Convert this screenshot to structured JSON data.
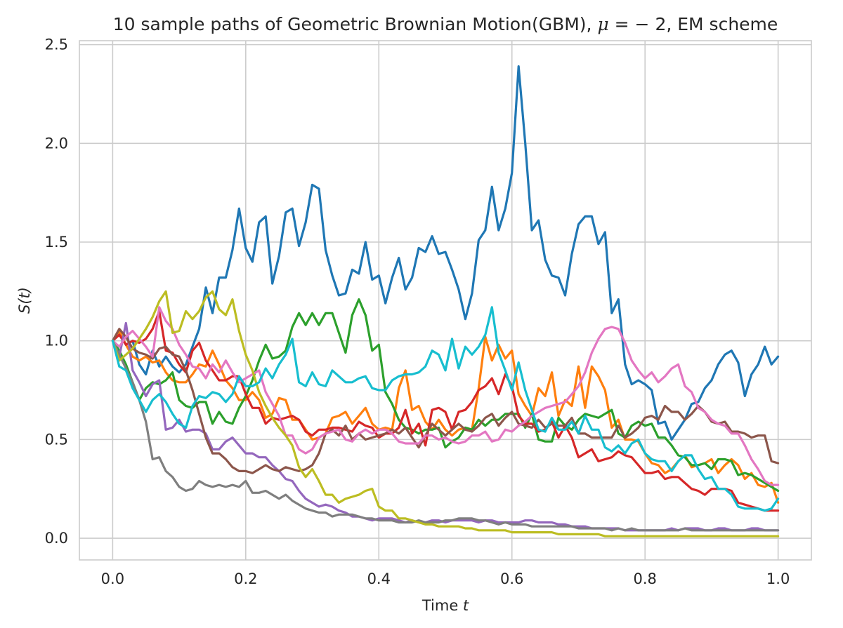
{
  "chart_data": {
    "type": "line",
    "title": "10 sample paths of Geometric Brownian Motion(GBM), μ = − 2, EM scheme",
    "title_parts": {
      "prefix": "10 sample paths of Geometric Brownian Motion(GBM), ",
      "mu_symbol": "μ",
      "mu_value": " = − 2",
      "suffix": ", EM scheme"
    },
    "xlabel": "Time t",
    "xlabel_parts": {
      "text": "Time ",
      "var": "t"
    },
    "ylabel": "S(t)",
    "xlim": [
      -0.05,
      1.05
    ],
    "ylim": [
      -0.11,
      2.52
    ],
    "xticks": [
      0.0,
      0.2,
      0.4,
      0.6,
      0.8,
      1.0
    ],
    "xtick_labels": [
      "0.0",
      "0.2",
      "0.4",
      "0.6",
      "0.8",
      "1.0"
    ],
    "yticks": [
      0.0,
      0.5,
      1.0,
      1.5,
      2.0,
      2.5
    ],
    "ytick_labels": [
      "0.0",
      "0.5",
      "1.0",
      "1.5",
      "2.0",
      "2.5"
    ],
    "grid": true,
    "x": [
      0.0,
      0.01,
      0.02,
      0.03,
      0.04,
      0.05,
      0.06,
      0.07,
      0.08,
      0.09,
      0.1,
      0.11,
      0.12,
      0.13,
      0.14,
      0.15,
      0.16,
      0.17,
      0.18,
      0.19,
      0.2,
      0.21,
      0.22,
      0.23,
      0.24,
      0.25,
      0.26,
      0.27,
      0.28,
      0.29,
      0.3,
      0.31,
      0.32,
      0.33,
      0.34,
      0.35,
      0.36,
      0.37,
      0.38,
      0.39,
      0.4,
      0.41,
      0.42,
      0.43,
      0.44,
      0.45,
      0.46,
      0.47,
      0.48,
      0.49,
      0.5,
      0.51,
      0.52,
      0.53,
      0.54,
      0.55,
      0.56,
      0.57,
      0.58,
      0.59,
      0.6,
      0.61,
      0.62,
      0.63,
      0.64,
      0.65,
      0.66,
      0.67,
      0.68,
      0.69,
      0.7,
      0.71,
      0.72,
      0.73,
      0.74,
      0.75,
      0.76,
      0.77,
      0.78,
      0.79,
      0.8,
      0.81,
      0.82,
      0.83,
      0.84,
      0.85,
      0.86,
      0.87,
      0.88,
      0.89,
      0.9,
      0.91,
      0.92,
      0.93,
      0.94,
      0.95,
      0.96,
      0.97,
      0.98,
      0.99,
      1.0
    ],
    "series": [
      {
        "color": "#1f77b4",
        "values": [
          1.0,
          1.04,
          0.98,
          1.0,
          0.88,
          0.83,
          0.95,
          0.87,
          0.92,
          0.87,
          0.84,
          0.88,
          0.97,
          1.06,
          1.27,
          1.14,
          1.32,
          1.32,
          1.46,
          1.67,
          1.47,
          1.4,
          1.6,
          1.63,
          1.29,
          1.43,
          1.65,
          1.67,
          1.48,
          1.6,
          1.79,
          1.77,
          1.46,
          1.33,
          1.23,
          1.24,
          1.36,
          1.34,
          1.5,
          1.31,
          1.33,
          1.19,
          1.32,
          1.42,
          1.26,
          1.32,
          1.47,
          1.45,
          1.53,
          1.44,
          1.45,
          1.36,
          1.26,
          1.11,
          1.24,
          1.51,
          1.56,
          1.78,
          1.56,
          1.67,
          1.85,
          2.39,
          2.0,
          1.56,
          1.61,
          1.41,
          1.33,
          1.32,
          1.23,
          1.44,
          1.59,
          1.63,
          1.63,
          1.49,
          1.55,
          1.14,
          1.21,
          0.88,
          0.78,
          0.8,
          0.78,
          0.75,
          0.58,
          0.59,
          0.5,
          0.55,
          0.6,
          0.68,
          0.69,
          0.76,
          0.8,
          0.88,
          0.93,
          0.95,
          0.89,
          0.72,
          0.83,
          0.88,
          0.97,
          0.88,
          0.92
        ]
      },
      {
        "color": "#ff7f0e",
        "values": [
          1.0,
          1.05,
          0.98,
          0.92,
          0.9,
          0.92,
          0.89,
          0.9,
          0.84,
          0.8,
          0.79,
          0.79,
          0.83,
          0.88,
          0.87,
          0.95,
          0.88,
          0.8,
          0.76,
          0.7,
          0.7,
          0.74,
          0.7,
          0.61,
          0.63,
          0.71,
          0.7,
          0.6,
          0.6,
          0.55,
          0.5,
          0.51,
          0.53,
          0.61,
          0.62,
          0.64,
          0.58,
          0.62,
          0.66,
          0.58,
          0.55,
          0.56,
          0.55,
          0.76,
          0.85,
          0.65,
          0.67,
          0.59,
          0.55,
          0.6,
          0.55,
          0.52,
          0.55,
          0.56,
          0.55,
          0.76,
          1.02,
          0.9,
          0.98,
          0.91,
          0.95,
          0.73,
          0.67,
          0.62,
          0.76,
          0.72,
          0.84,
          0.62,
          0.7,
          0.67,
          0.87,
          0.66,
          0.87,
          0.82,
          0.75,
          0.56,
          0.6,
          0.5,
          0.5,
          0.49,
          0.43,
          0.38,
          0.37,
          0.33,
          0.35,
          0.39,
          0.42,
          0.36,
          0.37,
          0.38,
          0.4,
          0.33,
          0.37,
          0.4,
          0.37,
          0.3,
          0.33,
          0.27,
          0.26,
          0.28,
          0.18
        ]
      },
      {
        "color": "#2ca02c",
        "values": [
          1.0,
          0.95,
          0.88,
          0.79,
          0.7,
          0.76,
          0.79,
          0.78,
          0.8,
          0.84,
          0.7,
          0.67,
          0.66,
          0.69,
          0.69,
          0.58,
          0.64,
          0.59,
          0.58,
          0.66,
          0.72,
          0.8,
          0.9,
          0.98,
          0.91,
          0.92,
          0.95,
          1.07,
          1.14,
          1.08,
          1.14,
          1.08,
          1.14,
          1.14,
          1.04,
          0.94,
          1.13,
          1.21,
          1.13,
          0.95,
          0.98,
          0.74,
          0.68,
          0.6,
          0.56,
          0.55,
          0.53,
          0.55,
          0.55,
          0.56,
          0.46,
          0.49,
          0.51,
          0.56,
          0.55,
          0.6,
          0.57,
          0.6,
          0.6,
          0.63,
          0.63,
          0.63,
          0.56,
          0.63,
          0.5,
          0.49,
          0.49,
          0.61,
          0.57,
          0.55,
          0.6,
          0.63,
          0.62,
          0.61,
          0.63,
          0.65,
          0.53,
          0.51,
          0.57,
          0.59,
          0.57,
          0.58,
          0.51,
          0.51,
          0.47,
          0.42,
          0.41,
          0.37,
          0.37,
          0.38,
          0.35,
          0.4,
          0.4,
          0.39,
          0.32,
          0.33,
          0.32,
          0.3,
          0.28,
          0.26,
          0.24
        ]
      },
      {
        "color": "#d62728",
        "values": [
          1.0,
          1.03,
          0.98,
          1.0,
          0.99,
          1.01,
          1.06,
          1.15,
          0.95,
          0.94,
          0.88,
          0.84,
          0.95,
          0.99,
          0.9,
          0.85,
          0.8,
          0.8,
          0.82,
          0.82,
          0.73,
          0.66,
          0.66,
          0.58,
          0.61,
          0.6,
          0.61,
          0.62,
          0.6,
          0.54,
          0.52,
          0.55,
          0.55,
          0.56,
          0.56,
          0.55,
          0.54,
          0.59,
          0.57,
          0.56,
          0.51,
          0.53,
          0.53,
          0.56,
          0.65,
          0.53,
          0.58,
          0.47,
          0.65,
          0.66,
          0.64,
          0.55,
          0.64,
          0.65,
          0.69,
          0.75,
          0.77,
          0.81,
          0.73,
          0.83,
          0.77,
          0.62,
          0.58,
          0.58,
          0.54,
          0.55,
          0.59,
          0.51,
          0.57,
          0.51,
          0.41,
          0.43,
          0.45,
          0.39,
          0.4,
          0.41,
          0.44,
          0.42,
          0.41,
          0.37,
          0.33,
          0.33,
          0.34,
          0.3,
          0.31,
          0.31,
          0.28,
          0.25,
          0.24,
          0.22,
          0.25,
          0.25,
          0.25,
          0.24,
          0.18,
          0.17,
          0.16,
          0.15,
          0.14,
          0.14,
          0.14
        ]
      },
      {
        "color": "#9467bd",
        "values": [
          1.0,
          0.92,
          1.09,
          0.85,
          0.79,
          0.72,
          0.78,
          0.8,
          0.55,
          0.56,
          0.6,
          0.54,
          0.55,
          0.55,
          0.53,
          0.45,
          0.45,
          0.49,
          0.51,
          0.47,
          0.43,
          0.43,
          0.41,
          0.41,
          0.37,
          0.34,
          0.3,
          0.29,
          0.24,
          0.2,
          0.18,
          0.16,
          0.17,
          0.16,
          0.14,
          0.13,
          0.11,
          0.11,
          0.1,
          0.09,
          0.1,
          0.1,
          0.1,
          0.09,
          0.08,
          0.09,
          0.08,
          0.08,
          0.09,
          0.09,
          0.08,
          0.09,
          0.09,
          0.09,
          0.09,
          0.08,
          0.09,
          0.09,
          0.08,
          0.08,
          0.08,
          0.08,
          0.09,
          0.09,
          0.08,
          0.08,
          0.08,
          0.07,
          0.07,
          0.06,
          0.06,
          0.06,
          0.05,
          0.05,
          0.05,
          0.05,
          0.05,
          0.04,
          0.04,
          0.04,
          0.04,
          0.04,
          0.04,
          0.04,
          0.05,
          0.04,
          0.05,
          0.05,
          0.05,
          0.04,
          0.04,
          0.05,
          0.05,
          0.04,
          0.04,
          0.04,
          0.05,
          0.05,
          0.04,
          0.04,
          0.04
        ]
      },
      {
        "color": "#8c564b",
        "values": [
          1.0,
          1.06,
          1.02,
          0.96,
          0.94,
          0.93,
          0.91,
          0.96,
          0.97,
          0.93,
          0.92,
          0.85,
          0.75,
          0.63,
          0.51,
          0.43,
          0.43,
          0.4,
          0.36,
          0.34,
          0.34,
          0.33,
          0.35,
          0.37,
          0.35,
          0.34,
          0.36,
          0.35,
          0.34,
          0.35,
          0.37,
          0.43,
          0.53,
          0.55,
          0.52,
          0.57,
          0.5,
          0.53,
          0.5,
          0.51,
          0.52,
          0.53,
          0.55,
          0.53,
          0.56,
          0.51,
          0.46,
          0.52,
          0.58,
          0.55,
          0.52,
          0.55,
          0.58,
          0.55,
          0.54,
          0.57,
          0.61,
          0.63,
          0.57,
          0.61,
          0.64,
          0.58,
          0.57,
          0.56,
          0.6,
          0.56,
          0.58,
          0.57,
          0.57,
          0.61,
          0.53,
          0.53,
          0.51,
          0.51,
          0.51,
          0.51,
          0.57,
          0.51,
          0.53,
          0.56,
          0.61,
          0.62,
          0.6,
          0.67,
          0.64,
          0.64,
          0.6,
          0.63,
          0.67,
          0.64,
          0.59,
          0.58,
          0.59,
          0.54,
          0.54,
          0.53,
          0.51,
          0.52,
          0.52,
          0.39,
          0.38
        ]
      },
      {
        "color": "#e377c2",
        "values": [
          1.0,
          0.97,
          1.02,
          1.05,
          1.01,
          0.97,
          0.92,
          1.17,
          1.1,
          1.06,
          0.98,
          0.93,
          0.87,
          0.86,
          0.81,
          0.88,
          0.84,
          0.9,
          0.84,
          0.79,
          0.81,
          0.83,
          0.85,
          0.74,
          0.68,
          0.62,
          0.52,
          0.52,
          0.45,
          0.43,
          0.45,
          0.51,
          0.53,
          0.54,
          0.55,
          0.5,
          0.49,
          0.53,
          0.55,
          0.53,
          0.55,
          0.55,
          0.53,
          0.49,
          0.48,
          0.48,
          0.48,
          0.52,
          0.52,
          0.5,
          0.51,
          0.49,
          0.48,
          0.49,
          0.52,
          0.52,
          0.54,
          0.49,
          0.5,
          0.55,
          0.54,
          0.57,
          0.59,
          0.62,
          0.64,
          0.66,
          0.67,
          0.68,
          0.69,
          0.73,
          0.77,
          0.84,
          0.94,
          1.01,
          1.06,
          1.07,
          1.06,
          0.99,
          0.9,
          0.85,
          0.81,
          0.84,
          0.79,
          0.82,
          0.86,
          0.88,
          0.77,
          0.74,
          0.66,
          0.64,
          0.6,
          0.58,
          0.57,
          0.53,
          0.53,
          0.47,
          0.4,
          0.35,
          0.29,
          0.27,
          0.27
        ]
      },
      {
        "color": "#7f7f7f",
        "values": [
          1.0,
          0.93,
          0.86,
          0.79,
          0.7,
          0.59,
          0.4,
          0.41,
          0.34,
          0.31,
          0.26,
          0.24,
          0.25,
          0.29,
          0.27,
          0.26,
          0.27,
          0.26,
          0.27,
          0.26,
          0.29,
          0.23,
          0.23,
          0.24,
          0.22,
          0.2,
          0.22,
          0.19,
          0.17,
          0.15,
          0.14,
          0.13,
          0.13,
          0.11,
          0.12,
          0.12,
          0.12,
          0.11,
          0.1,
          0.1,
          0.09,
          0.09,
          0.09,
          0.08,
          0.08,
          0.08,
          0.09,
          0.08,
          0.08,
          0.08,
          0.09,
          0.09,
          0.1,
          0.1,
          0.1,
          0.09,
          0.09,
          0.08,
          0.07,
          0.08,
          0.07,
          0.07,
          0.07,
          0.06,
          0.06,
          0.06,
          0.06,
          0.06,
          0.06,
          0.06,
          0.05,
          0.05,
          0.05,
          0.05,
          0.05,
          0.04,
          0.05,
          0.04,
          0.05,
          0.04,
          0.04,
          0.04,
          0.04,
          0.04,
          0.04,
          0.04,
          0.05,
          0.04,
          0.04,
          0.04,
          0.04,
          0.04,
          0.04,
          0.04,
          0.04,
          0.04,
          0.04,
          0.04,
          0.04,
          0.04,
          0.04
        ]
      },
      {
        "color": "#bcbd22",
        "values": [
          1.0,
          0.9,
          0.93,
          0.96,
          1.01,
          1.06,
          1.12,
          1.2,
          1.25,
          1.04,
          1.05,
          1.15,
          1.11,
          1.15,
          1.22,
          1.25,
          1.16,
          1.13,
          1.21,
          1.05,
          0.93,
          0.85,
          0.74,
          0.67,
          0.61,
          0.56,
          0.52,
          0.47,
          0.36,
          0.31,
          0.35,
          0.29,
          0.22,
          0.22,
          0.18,
          0.2,
          0.21,
          0.22,
          0.24,
          0.25,
          0.16,
          0.14,
          0.14,
          0.1,
          0.1,
          0.09,
          0.08,
          0.07,
          0.07,
          0.06,
          0.06,
          0.06,
          0.06,
          0.05,
          0.05,
          0.04,
          0.04,
          0.04,
          0.04,
          0.04,
          0.03,
          0.03,
          0.03,
          0.03,
          0.03,
          0.03,
          0.03,
          0.02,
          0.02,
          0.02,
          0.02,
          0.02,
          0.02,
          0.02,
          0.01,
          0.01,
          0.01,
          0.01,
          0.01,
          0.01,
          0.01,
          0.01,
          0.01,
          0.01,
          0.01,
          0.01,
          0.01,
          0.01,
          0.01,
          0.01,
          0.01,
          0.01,
          0.01,
          0.01,
          0.01,
          0.01,
          0.01,
          0.01,
          0.01,
          0.01,
          0.01
        ]
      },
      {
        "color": "#17becf",
        "values": [
          1.0,
          0.87,
          0.85,
          0.76,
          0.7,
          0.64,
          0.7,
          0.73,
          0.69,
          0.63,
          0.58,
          0.56,
          0.67,
          0.72,
          0.71,
          0.74,
          0.73,
          0.69,
          0.73,
          0.82,
          0.77,
          0.77,
          0.79,
          0.86,
          0.81,
          0.88,
          0.93,
          1.01,
          0.79,
          0.77,
          0.84,
          0.78,
          0.77,
          0.85,
          0.82,
          0.79,
          0.79,
          0.81,
          0.82,
          0.76,
          0.75,
          0.75,
          0.8,
          0.82,
          0.83,
          0.83,
          0.84,
          0.87,
          0.95,
          0.93,
          0.85,
          1.01,
          0.86,
          0.97,
          0.93,
          0.97,
          1.03,
          1.17,
          0.94,
          0.85,
          0.75,
          0.89,
          0.75,
          0.65,
          0.55,
          0.54,
          0.61,
          0.55,
          0.55,
          0.59,
          0.53,
          0.62,
          0.55,
          0.55,
          0.46,
          0.44,
          0.47,
          0.43,
          0.48,
          0.5,
          0.43,
          0.4,
          0.39,
          0.39,
          0.34,
          0.39,
          0.42,
          0.42,
          0.35,
          0.3,
          0.31,
          0.25,
          0.25,
          0.22,
          0.16,
          0.15,
          0.15,
          0.15,
          0.14,
          0.15,
          0.2
        ]
      }
    ]
  }
}
